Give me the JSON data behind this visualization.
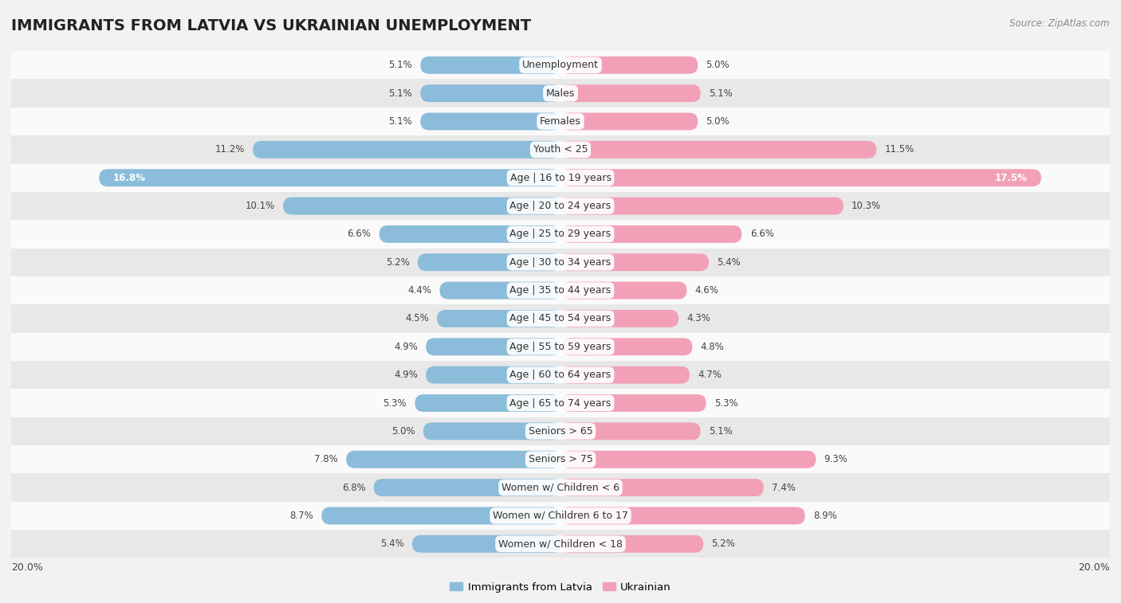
{
  "title": "IMMIGRANTS FROM LATVIA VS UKRAINIAN UNEMPLOYMENT",
  "source": "Source: ZipAtlas.com",
  "categories": [
    "Unemployment",
    "Males",
    "Females",
    "Youth < 25",
    "Age | 16 to 19 years",
    "Age | 20 to 24 years",
    "Age | 25 to 29 years",
    "Age | 30 to 34 years",
    "Age | 35 to 44 years",
    "Age | 45 to 54 years",
    "Age | 55 to 59 years",
    "Age | 60 to 64 years",
    "Age | 65 to 74 years",
    "Seniors > 65",
    "Seniors > 75",
    "Women w/ Children < 6",
    "Women w/ Children 6 to 17",
    "Women w/ Children < 18"
  ],
  "latvia_values": [
    5.1,
    5.1,
    5.1,
    11.2,
    16.8,
    10.1,
    6.6,
    5.2,
    4.4,
    4.5,
    4.9,
    4.9,
    5.3,
    5.0,
    7.8,
    6.8,
    8.7,
    5.4
  ],
  "ukrainian_values": [
    5.0,
    5.1,
    5.0,
    11.5,
    17.5,
    10.3,
    6.6,
    5.4,
    4.6,
    4.3,
    4.8,
    4.7,
    5.3,
    5.1,
    9.3,
    7.4,
    8.9,
    5.2
  ],
  "latvia_color": "#8bbcda",
  "ukrainian_color": "#f2a0b8",
  "background_color": "#f2f2f2",
  "row_color_even": "#fafafa",
  "row_color_odd": "#e8e8e8",
  "bar_height": 0.62,
  "xlim": 20.0,
  "legend_labels": [
    "Immigrants from Latvia",
    "Ukrainian"
  ],
  "title_fontsize": 14,
  "label_fontsize": 9,
  "value_fontsize": 8.5,
  "source_fontsize": 8.5
}
